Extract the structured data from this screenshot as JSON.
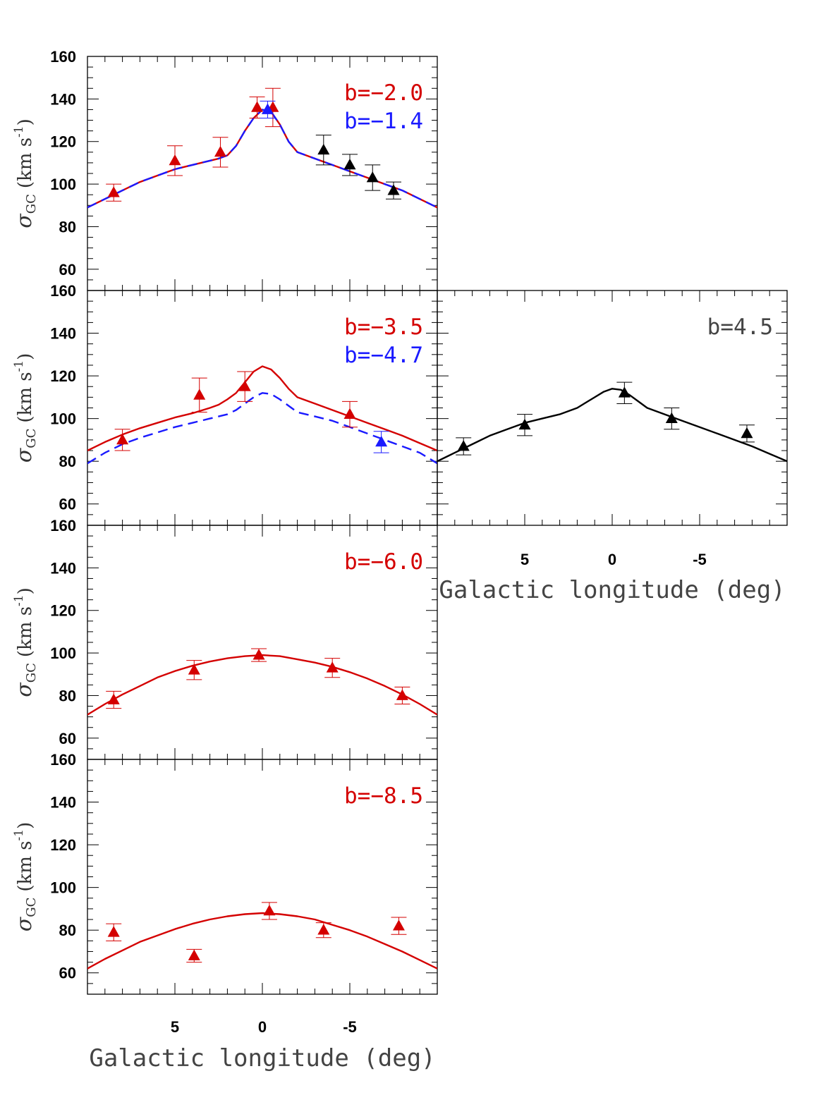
{
  "colors": {
    "red": "#d40000",
    "blue": "#1a1aff",
    "black": "#000000",
    "gray": "#444444"
  },
  "common": {
    "y_label_sym": "σ",
    "y_label_sub": "GC",
    "y_label_units": "(km s",
    "y_label_exp": "-1",
    "y_label_close": ")",
    "x_label": "Galactic longitude (deg)",
    "y_ticks": [
      60,
      80,
      100,
      120,
      140,
      160
    ],
    "x_ticks": [
      5,
      0,
      -5
    ],
    "xlim": [
      10,
      -10
    ],
    "ylim": [
      50,
      160
    ]
  },
  "chart_data": [
    {
      "type": "line",
      "panel": "b=-2.0 / b=-1.4",
      "annotations": [
        {
          "text": "b=−2.0",
          "color": "red"
        },
        {
          "text": "b=−1.4",
          "color": "blue"
        }
      ],
      "xlim": [
        10,
        -10
      ],
      "ylim": [
        50,
        160
      ],
      "series": [
        {
          "name": "model b=-2.0",
          "style": "solid",
          "color": "red",
          "x": [
            10,
            9,
            8,
            7,
            6,
            5,
            4,
            3,
            2.5,
            2,
            1.5,
            1,
            0.5,
            0,
            -0.5,
            -1,
            -1.5,
            -2,
            -3,
            -4,
            -5,
            -6,
            -7,
            -8,
            -9,
            -10
          ],
          "y": [
            89,
            93,
            97,
            101,
            104,
            107,
            109,
            111,
            112,
            113.5,
            118,
            125,
            131,
            135,
            134,
            128,
            120,
            115,
            112,
            109,
            106,
            103,
            100,
            97,
            93,
            89
          ]
        },
        {
          "name": "model b=-1.4",
          "style": "dashed",
          "color": "blue",
          "x": [
            10,
            9,
            8,
            7,
            6,
            5,
            4,
            3,
            2.5,
            2,
            1.5,
            1,
            0.5,
            0,
            -0.5,
            -1,
            -1.5,
            -2,
            -3,
            -4,
            -5,
            -6,
            -7,
            -8,
            -9,
            -10
          ],
          "y": [
            89,
            93,
            97,
            101,
            104,
            107,
            109,
            111,
            112,
            113.5,
            118,
            125,
            131,
            135,
            134,
            128,
            120,
            115,
            112,
            109,
            106,
            103,
            100,
            97,
            93,
            89
          ]
        }
      ],
      "points": [
        {
          "x": 8.5,
          "y": 96,
          "err": 4,
          "color": "red"
        },
        {
          "x": 5.0,
          "y": 111,
          "err": 7,
          "color": "red"
        },
        {
          "x": 2.4,
          "y": 115,
          "err": 7,
          "color": "red"
        },
        {
          "x": 0.3,
          "y": 136,
          "err": 5,
          "color": "red"
        },
        {
          "x": -0.6,
          "y": 136,
          "err": 9,
          "color": "red"
        },
        {
          "x": -0.3,
          "y": 135,
          "err": 4,
          "color": "blue"
        },
        {
          "x": -3.5,
          "y": 116,
          "err": 7,
          "color": "black"
        },
        {
          "x": -5.0,
          "y": 109,
          "err": 5,
          "color": "black"
        },
        {
          "x": -6.3,
          "y": 103,
          "err": 6,
          "color": "black"
        },
        {
          "x": -7.5,
          "y": 97,
          "err": 4,
          "color": "black"
        }
      ]
    },
    {
      "type": "line",
      "panel": "b=-3.5 / b=-4.7",
      "annotations": [
        {
          "text": "b=−3.5",
          "color": "red"
        },
        {
          "text": "b=−4.7",
          "color": "blue"
        }
      ],
      "xlim": [
        10,
        -10
      ],
      "ylim": [
        50,
        160
      ],
      "series": [
        {
          "name": "model b=-3.5",
          "style": "solid",
          "color": "red",
          "x": [
            10,
            9,
            8,
            7,
            6,
            5,
            4,
            3,
            2.5,
            2,
            1.5,
            1,
            0.5,
            0,
            -0.5,
            -1,
            -1.5,
            -2,
            -3,
            -4,
            -5,
            -6,
            -7,
            -8,
            -9,
            -10
          ],
          "y": [
            85,
            89,
            92.5,
            95.5,
            98,
            100.5,
            102.5,
            105,
            106.5,
            109,
            112,
            117,
            122,
            124.5,
            123,
            119,
            114,
            110,
            107,
            104,
            101,
            98,
            95,
            92,
            88.5,
            85
          ]
        },
        {
          "name": "model b=-4.7",
          "style": "dashed",
          "color": "blue",
          "x": [
            10,
            9,
            8,
            7,
            6,
            5,
            4,
            3,
            2.5,
            2,
            1.5,
            1,
            0.5,
            0,
            -0.5,
            -1,
            -1.5,
            -2,
            -3,
            -4,
            -5,
            -6,
            -7,
            -8,
            -9,
            -10
          ],
          "y": [
            79,
            84,
            88,
            91,
            93.5,
            96,
            98,
            100,
            101,
            102,
            104,
            107,
            110,
            112,
            111.5,
            109,
            106,
            103,
            101,
            99,
            96,
            93,
            90,
            87,
            84,
            79
          ]
        }
      ],
      "points": [
        {
          "x": 8.0,
          "y": 90,
          "err": 5,
          "color": "red"
        },
        {
          "x": 3.6,
          "y": 111,
          "err": 8,
          "color": "red"
        },
        {
          "x": 1.0,
          "y": 115,
          "err": 7,
          "color": "red"
        },
        {
          "x": -5.0,
          "y": 102,
          "err": 6,
          "color": "red"
        },
        {
          "x": -6.8,
          "y": 89,
          "err": 5,
          "color": "blue"
        }
      ]
    },
    {
      "type": "line",
      "panel": "b=4.5",
      "annotations": [
        {
          "text": "b=4.5",
          "color": "gray"
        }
      ],
      "xlim": [
        10,
        -10
      ],
      "ylim": [
        50,
        160
      ],
      "series": [
        {
          "name": "model b=4.5",
          "style": "solid",
          "color": "black",
          "x": [
            10,
            9,
            8,
            7,
            6,
            5,
            4,
            3,
            2,
            1.5,
            1,
            0.5,
            0,
            -0.5,
            -1,
            -1.5,
            -2,
            -3,
            -4,
            -5,
            -6,
            -7,
            -8,
            -9,
            -10
          ],
          "y": [
            80,
            84,
            88,
            92,
            95,
            98,
            100,
            102,
            105,
            107.5,
            110,
            112.5,
            114,
            113.5,
            111,
            108,
            105,
            102,
            99,
            96,
            93,
            90,
            87,
            83.5,
            80
          ]
        },
        {
          "name": "model b=4.5 outline",
          "style": "solid",
          "color": "black",
          "x": [],
          "y": []
        }
      ],
      "points": [
        {
          "x": 8.5,
          "y": 87,
          "err": 4,
          "color": "black"
        },
        {
          "x": 5.0,
          "y": 97,
          "err": 5,
          "color": "black"
        },
        {
          "x": -0.7,
          "y": 112,
          "err": 5,
          "color": "black"
        },
        {
          "x": -3.4,
          "y": 100,
          "err": 5,
          "color": "black"
        },
        {
          "x": -7.7,
          "y": 93,
          "err": 4,
          "color": "black"
        }
      ]
    },
    {
      "type": "line",
      "panel": "b=-6.0",
      "annotations": [
        {
          "text": "b=−6.0",
          "color": "red"
        }
      ],
      "xlim": [
        10,
        -10
      ],
      "ylim": [
        50,
        160
      ],
      "series": [
        {
          "name": "model b=-6.0",
          "style": "solid",
          "color": "red",
          "x": [
            10,
            9,
            8,
            7,
            6,
            5,
            4,
            3,
            2,
            1,
            0,
            -1,
            -2,
            -3,
            -4,
            -5,
            -6,
            -7,
            -8,
            -9,
            -10
          ],
          "y": [
            71,
            76,
            80.5,
            84.5,
            88.5,
            91.5,
            94,
            96,
            97.5,
            98.5,
            99,
            98.5,
            97,
            95.5,
            93.5,
            91,
            88,
            84.5,
            80.5,
            76,
            71
          ]
        }
      ],
      "points": [
        {
          "x": 8.5,
          "y": 78,
          "err": 4,
          "color": "red"
        },
        {
          "x": 3.9,
          "y": 92,
          "err": 4.5,
          "color": "red"
        },
        {
          "x": 0.2,
          "y": 99,
          "err": 3,
          "color": "red"
        },
        {
          "x": -4.0,
          "y": 93,
          "err": 4.5,
          "color": "red"
        },
        {
          "x": -8.0,
          "y": 80,
          "err": 4,
          "color": "red"
        }
      ]
    },
    {
      "type": "line",
      "panel": "b=-8.5",
      "annotations": [
        {
          "text": "b=−8.5",
          "color": "red"
        }
      ],
      "xlim": [
        10,
        -10
      ],
      "ylim": [
        50,
        160
      ],
      "series": [
        {
          "name": "model b=-8.5",
          "style": "solid",
          "color": "red",
          "x": [
            10,
            9,
            8,
            7,
            6,
            5,
            4,
            3,
            2,
            1,
            0,
            -1,
            -2,
            -3,
            -4,
            -5,
            -6,
            -7,
            -8,
            -9,
            -10
          ],
          "y": [
            62,
            66.5,
            70.5,
            74.5,
            77.5,
            80.5,
            83,
            85,
            86.5,
            87.5,
            88,
            87.5,
            86.5,
            85,
            82.5,
            80,
            77,
            73.5,
            70,
            66,
            62
          ]
        }
      ],
      "points": [
        {
          "x": 8.5,
          "y": 79,
          "err": 4,
          "color": "red"
        },
        {
          "x": 3.9,
          "y": 68,
          "err": 3,
          "color": "red"
        },
        {
          "x": -0.4,
          "y": 89,
          "err": 4,
          "color": "red"
        },
        {
          "x": -3.5,
          "y": 80,
          "err": 3.5,
          "color": "red"
        },
        {
          "x": -7.8,
          "y": 82,
          "err": 4,
          "color": "red"
        }
      ]
    }
  ]
}
